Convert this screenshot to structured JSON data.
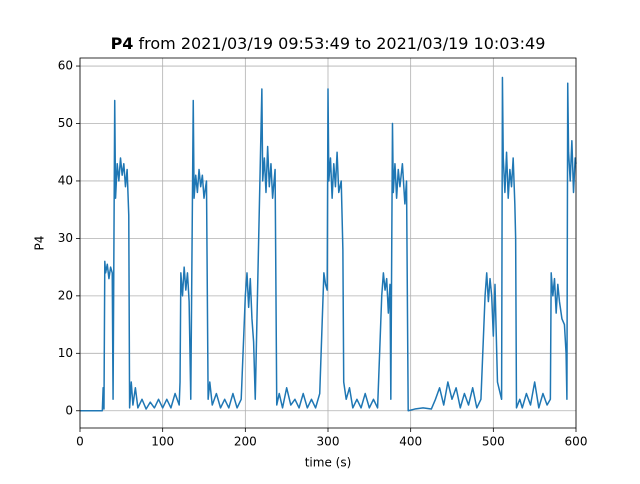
{
  "chart_data": {
    "type": "line",
    "title": [
      "P4",
      "from 2021/03/19 09:53:49 to 2021/03/19 10:03:49"
    ],
    "xlabel": "time (s)",
    "ylabel": "P4",
    "xlim": [
      0,
      600
    ],
    "ylim": [
      -3,
      61.4
    ],
    "xticks": [
      0,
      100,
      200,
      300,
      400,
      500,
      600
    ],
    "yticks": [
      0,
      10,
      20,
      30,
      40,
      50,
      60
    ],
    "grid": true,
    "x": [
      0,
      27,
      28,
      29,
      30,
      31,
      33,
      35,
      37,
      39,
      40,
      42,
      43,
      45,
      47,
      49,
      51,
      53,
      55,
      57,
      59,
      60,
      62,
      64,
      67,
      70,
      75,
      80,
      85,
      90,
      95,
      100,
      105,
      110,
      115,
      120,
      121,
      122,
      124,
      126,
      128,
      130,
      132,
      134,
      137,
      138,
      140,
      142,
      144,
      146,
      148,
      150,
      153,
      155,
      157,
      160,
      165,
      170,
      175,
      180,
      185,
      190,
      195,
      200,
      202,
      204,
      206,
      208,
      210,
      212,
      220,
      221,
      223,
      225,
      227,
      229,
      231,
      233,
      236,
      238,
      241,
      245,
      250,
      255,
      260,
      265,
      270,
      275,
      280,
      285,
      290,
      295,
      297,
      299,
      300,
      301,
      303,
      305,
      307,
      309,
      311,
      313,
      316,
      318,
      319,
      322,
      326,
      330,
      335,
      340,
      345,
      350,
      355,
      360,
      365,
      367,
      369,
      371,
      373,
      375,
      376,
      378,
      379,
      381,
      383,
      385,
      387,
      390,
      393,
      395,
      397,
      405,
      415,
      425,
      430,
      435,
      440,
      445,
      450,
      455,
      460,
      465,
      470,
      475,
      480,
      485,
      490,
      492,
      494,
      496,
      498,
      500,
      502,
      505,
      510,
      511,
      512,
      514,
      516,
      518,
      520,
      522,
      524,
      526,
      527,
      528,
      532,
      535,
      540,
      545,
      550,
      555,
      560,
      565,
      569,
      570,
      572,
      574,
      576,
      578,
      580,
      583,
      586,
      588,
      589,
      590,
      591,
      593,
      595,
      597,
      599,
      600
    ],
    "series": [
      {
        "name": "P4",
        "color": "#1f77b4",
        "values": [
          0,
          0,
          4,
          0.3,
          26,
          24,
          25.5,
          23,
          25,
          24,
          2,
          54,
          37,
          43,
          40,
          44,
          41,
          43,
          39,
          42,
          34,
          0.5,
          5,
          1,
          4,
          0.5,
          2,
          0.3,
          1.5,
          0.5,
          2,
          0.5,
          2,
          0.5,
          3,
          1,
          5,
          24,
          20,
          25,
          21,
          24,
          19,
          2,
          54,
          37,
          41,
          38,
          42,
          39,
          41,
          37,
          40,
          2,
          5,
          1,
          3,
          0.5,
          2,
          0.5,
          3,
          0.5,
          2,
          20,
          24,
          18,
          23,
          16,
          12,
          2,
          56,
          40,
          44,
          38,
          46,
          39,
          43,
          37,
          42,
          1,
          3,
          0.5,
          4,
          1,
          2,
          0.5,
          3,
          0.5,
          2,
          0.5,
          3,
          24,
          22,
          21,
          56,
          40,
          44,
          37,
          43,
          39,
          45,
          38,
          40,
          28,
          5,
          2,
          4,
          0.5,
          2,
          0.5,
          3,
          0.5,
          2,
          0.5,
          20,
          24,
          21,
          23,
          17,
          22,
          2,
          50,
          38,
          43,
          37,
          42,
          39,
          43,
          36,
          40,
          0,
          0.3,
          0.5,
          0.3,
          2,
          4,
          1,
          5,
          2,
          4,
          0.5,
          3,
          1,
          4,
          0.5,
          2,
          20,
          24,
          19,
          23,
          20,
          13,
          22,
          5,
          2,
          58,
          44,
          38,
          45,
          37,
          42,
          39,
          44,
          36,
          30,
          0.5,
          2,
          0.5,
          3,
          1,
          5,
          0.5,
          3,
          1,
          2,
          24,
          20,
          23,
          17,
          22,
          19,
          16,
          15,
          10,
          2,
          57,
          45,
          40,
          47,
          38,
          44,
          43
        ]
      }
    ]
  }
}
